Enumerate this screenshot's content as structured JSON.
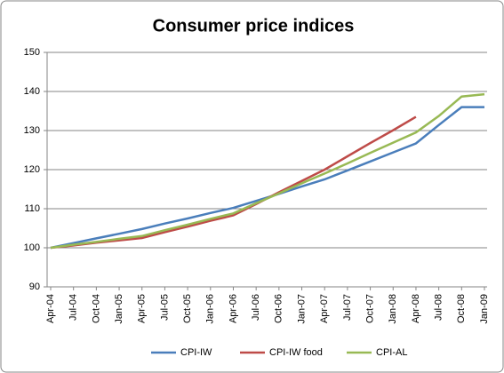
{
  "chart_data": {
    "type": "line",
    "title": "Consumer price indices",
    "categories": [
      "Apr-04",
      "Jul-04",
      "Oct-04",
      "Jan-05",
      "Apr-05",
      "Jul-05",
      "Oct-05",
      "Jan-06",
      "Apr-06",
      "Jul-06",
      "Oct-06",
      "Jan-07",
      "Apr-07",
      "Jul-07",
      "Oct-07",
      "Jan-08",
      "Apr-08",
      "Jul-08",
      "Oct-08",
      "Jan-09"
    ],
    "series": [
      {
        "name": "CPI-IW",
        "color": "#4a7ebb",
        "values": [
          100,
          101.2,
          102.4,
          103.6,
          104.8,
          106.2,
          107.5,
          108.9,
          110.2,
          112.0,
          113.8,
          115.7,
          117.5,
          119.8,
          122.1,
          124.4,
          126.7,
          131.4,
          136,
          136
        ]
      },
      {
        "name": "CPI-IW food",
        "color": "#be4b48",
        "values": [
          100,
          100.6,
          101.3,
          101.9,
          102.5,
          104.0,
          105.4,
          106.9,
          108.3,
          111.2,
          114.2,
          117.1,
          120,
          123.4,
          126.8,
          130.1,
          133.5,
          null,
          null,
          null
        ]
      },
      {
        "name": "CPI-AL",
        "color": "#98b954",
        "values": [
          100,
          100.8,
          101.5,
          102.3,
          103,
          104.5,
          105.9,
          107.4,
          108.8,
          111.4,
          113.9,
          116.5,
          119,
          121.6,
          124.3,
          126.9,
          129.5,
          133.7,
          138.7,
          139.3
        ]
      }
    ],
    "ylim": [
      90,
      150
    ],
    "yticks": [
      90,
      100,
      110,
      120,
      130,
      140,
      150
    ],
    "grid": true,
    "legend": "bottom"
  }
}
